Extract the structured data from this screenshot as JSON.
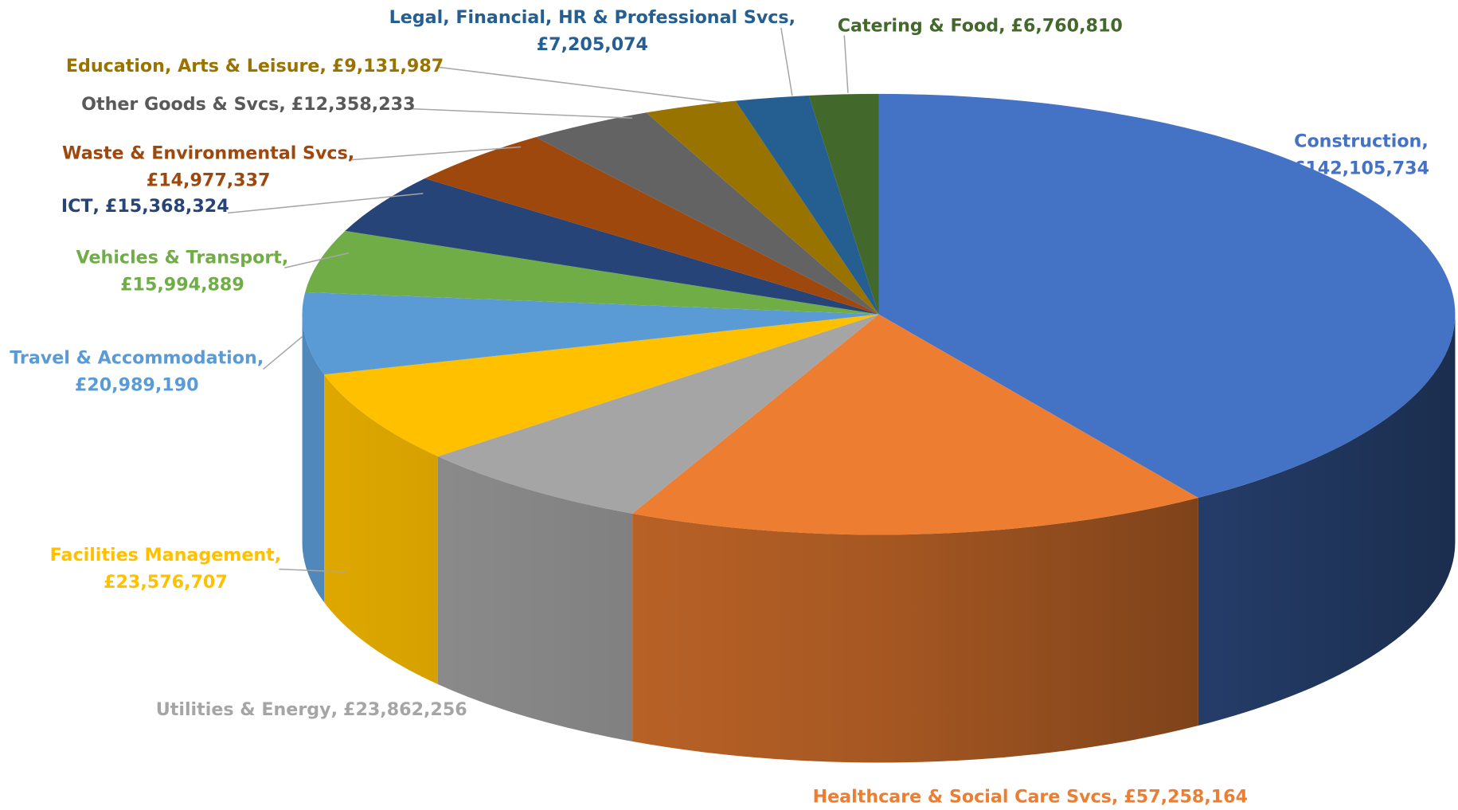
{
  "chart_data": {
    "type": "pie3d",
    "categories": [
      "Construction",
      "Healthcare & Social Care Svcs",
      "Utilities & Energy",
      "Facilities Management",
      "Travel & Accommodation",
      "Vehicles & Transport",
      "ICT",
      "Waste & Environmental Svcs",
      "Other Goods & Svcs",
      "Education, Arts & Leisure",
      "Legal, Financial, HR & Professional Svcs",
      "Catering & Food"
    ],
    "values": [
      142105734,
      57258164,
      23862256,
      23576707,
      20989190,
      15994889,
      15368324,
      14977337,
      12358233,
      9131987,
      7205074,
      6760810
    ],
    "value_labels": [
      "£142,105,734",
      "£57,258,164",
      "£23,862,256",
      "£23,576,707",
      "£20,989,190",
      "£15,994,889",
      "£15,368,324",
      "£14,977,337",
      "£12,358,233",
      "£9,131,987",
      "£7,205,074",
      "£6,760,810"
    ],
    "colors": [
      "#4472c4",
      "#ed7d31",
      "#a5a5a5",
      "#ffc000",
      "#5b9bd5",
      "#70ad47",
      "#264478",
      "#9e480e",
      "#636363",
      "#997300",
      "#255e91",
      "#43682b"
    ]
  }
}
